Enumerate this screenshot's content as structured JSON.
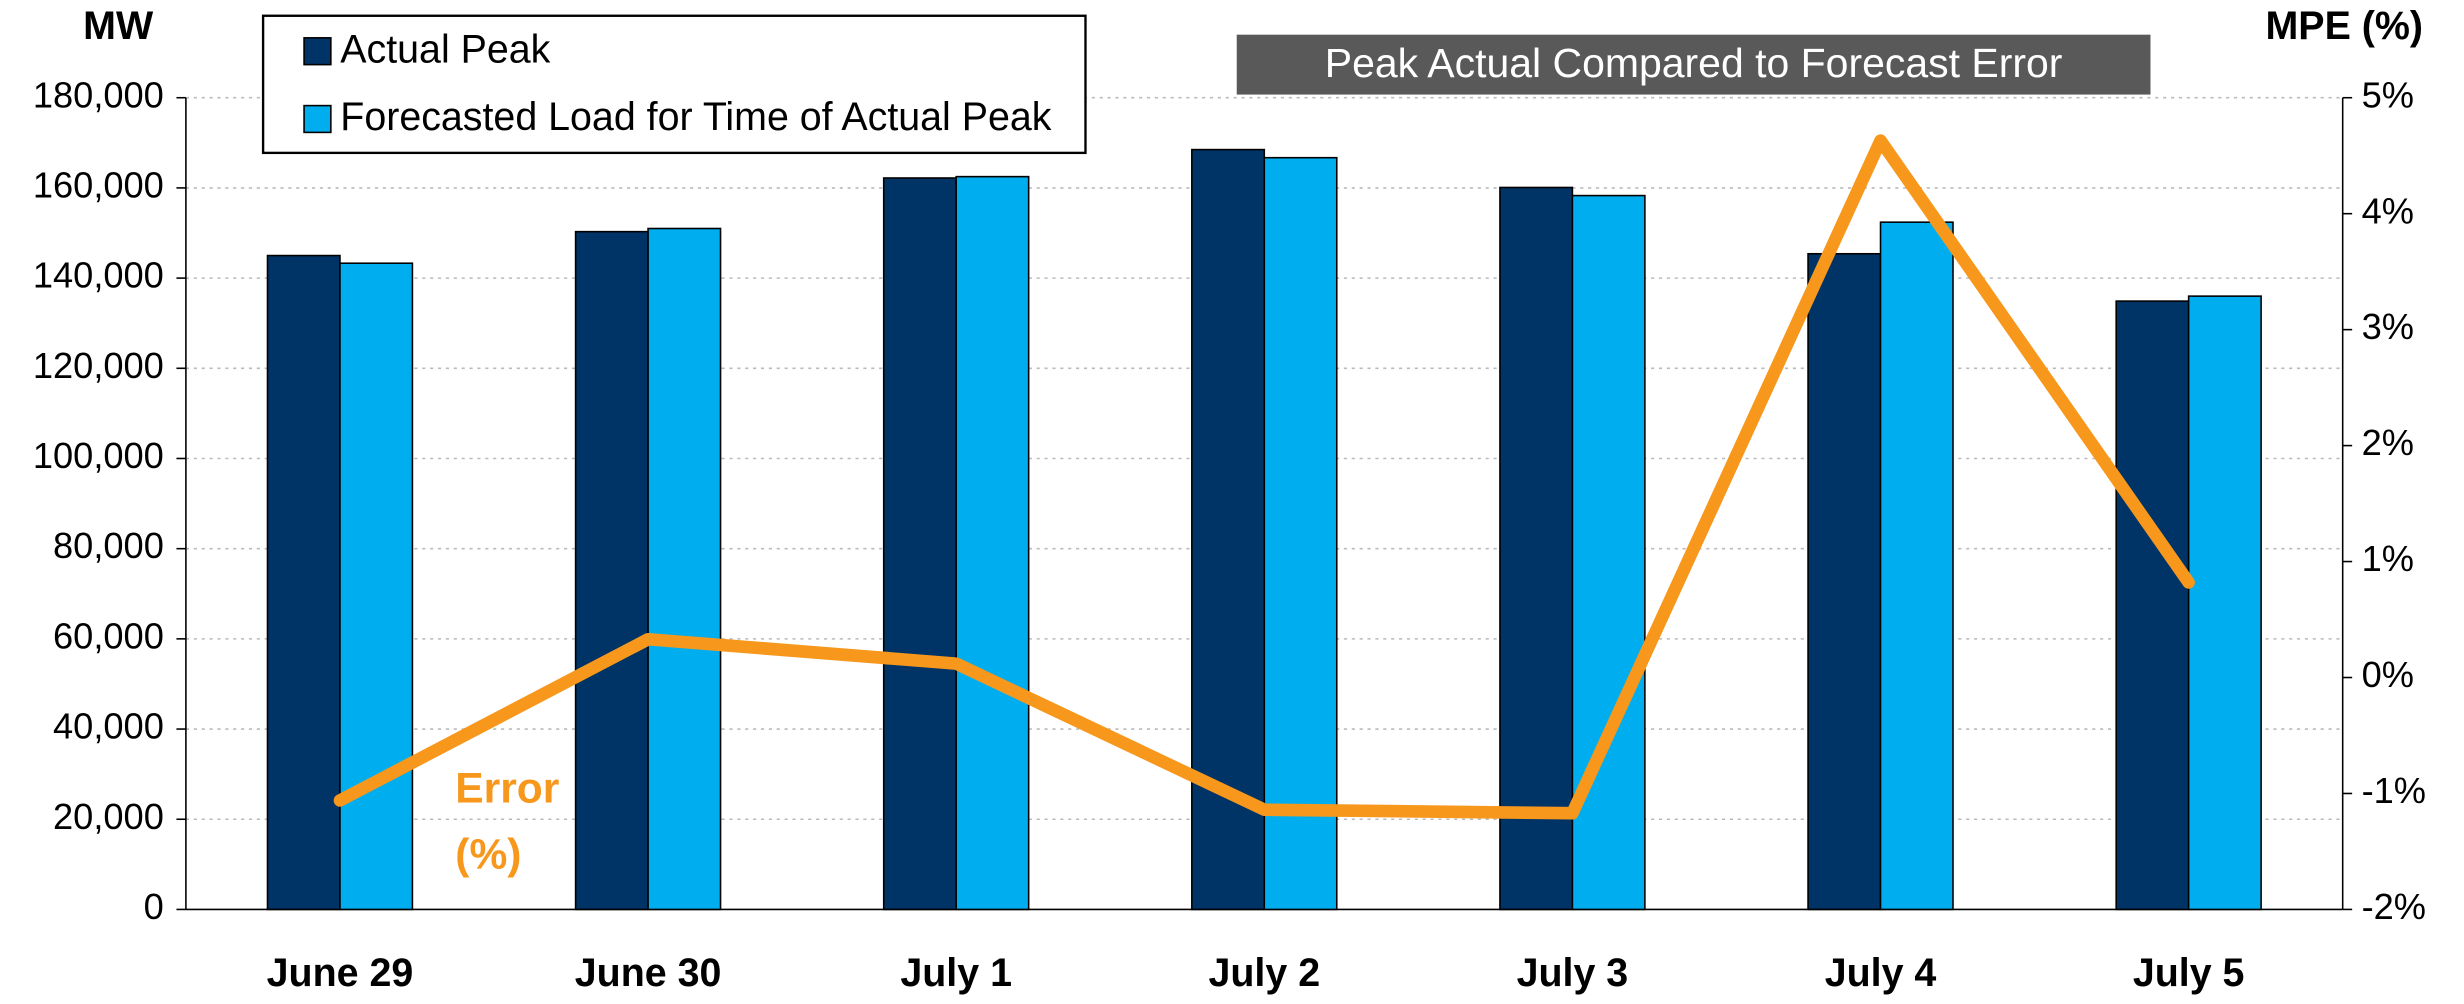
{
  "chart_data": {
    "type": "bar",
    "title": "Peak Actual Compared to Forecast Error",
    "y_axis_label": "MW",
    "y2_axis_label": "MPE (%)",
    "annotation": [
      "Error",
      "(%)"
    ],
    "categories": [
      "June 29",
      "June 30",
      "July 1",
      "July 2",
      "July 3",
      "July 4",
      "July 5"
    ],
    "series": [
      {
        "name": "Actual Peak",
        "type": "bar",
        "color": "#003366",
        "values": [
          145000,
          150300,
          162200,
          168500,
          160100,
          145400,
          134900
        ]
      },
      {
        "name": "Forecasted Load for Time of Actual Peak",
        "type": "bar",
        "color": "#00aeef",
        "values": [
          143300,
          151000,
          162500,
          166700,
          158300,
          152400,
          136000
        ]
      },
      {
        "type": "line",
        "axis": "y2",
        "color": "#f7971c",
        "values": [
          -1.06,
          0.33,
          0.12,
          -1.14,
          -1.17,
          4.63,
          0.82
        ]
      }
    ],
    "ylim": [
      0,
      180000
    ],
    "yticks": [
      0,
      {
        "value": 20000,
        "label": "20,000"
      },
      {
        "value": 40000,
        "label": "40,000"
      },
      {
        "value": 60000,
        "label": "60,000"
      },
      {
        "value": 80000,
        "label": "80,000"
      },
      {
        "value": 100000,
        "label": "100,000"
      },
      {
        "value": 120000,
        "label": "120,000"
      },
      {
        "value": 140000,
        "label": "140,000"
      },
      {
        "value": 160000,
        "label": "160,000"
      },
      {
        "value": 180000,
        "label": "180,000"
      }
    ],
    "y2lim": [
      -2,
      5
    ],
    "y2ticks": [
      {
        "value": -2,
        "label": "-2%"
      },
      {
        "value": -1,
        "label": "-1%"
      },
      {
        "value": 0,
        "label": "0%"
      },
      {
        "value": 1,
        "label": "1%"
      },
      {
        "value": 2,
        "label": "2%"
      },
      {
        "value": 3,
        "label": "3%"
      },
      {
        "value": 4,
        "label": "4%"
      },
      {
        "value": 5,
        "label": "5%"
      }
    ],
    "grid": true,
    "legend": "top-left"
  }
}
